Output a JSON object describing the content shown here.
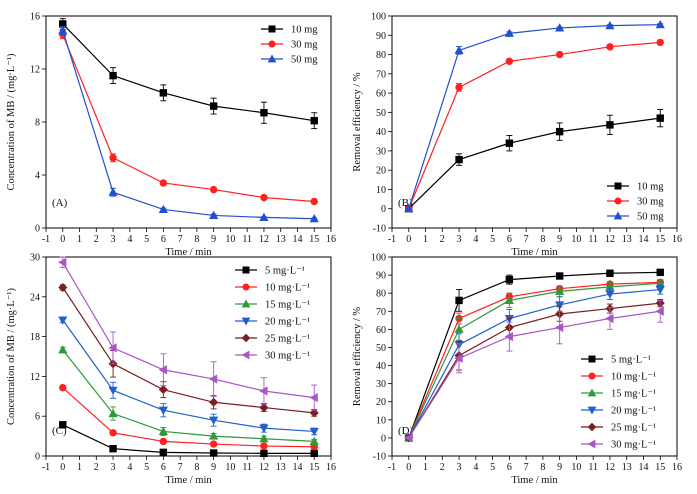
{
  "chart_data": [
    {
      "panel": "A",
      "panel_label": "(A)",
      "type": "line",
      "xlabel": "Time / min",
      "ylabel": "Concentration of MB / (mg·L⁻¹)",
      "xlim": [
        -1,
        16
      ],
      "ylim": [
        0,
        16
      ],
      "xticks": [
        -1,
        0,
        1,
        2,
        3,
        4,
        5,
        6,
        7,
        8,
        9,
        10,
        11,
        12,
        13,
        14,
        15,
        16
      ],
      "yticks": [
        0,
        4,
        8,
        12,
        16
      ],
      "x": [
        0,
        3,
        6,
        9,
        12,
        15
      ],
      "legend_position": "top-right",
      "series": [
        {
          "name": "10 mg",
          "color": "#000000",
          "marker": "square",
          "values": [
            15.4,
            11.5,
            10.2,
            9.2,
            8.7,
            8.1
          ],
          "errors": [
            0.4,
            0.6,
            0.6,
            0.6,
            0.8,
            0.6
          ]
        },
        {
          "name": "30 mg",
          "color": "#ff2020",
          "marker": "circle",
          "values": [
            14.6,
            5.3,
            3.4,
            2.9,
            2.3,
            2.0
          ],
          "errors": [
            0.3,
            0.3,
            0.15,
            0.1,
            0.1,
            0.1
          ]
        },
        {
          "name": "50 mg",
          "color": "#2050d0",
          "marker": "triangle-up",
          "values": [
            14.9,
            2.7,
            1.4,
            0.95,
            0.8,
            0.7
          ],
          "errors": [
            0.3,
            0.3,
            0.1,
            0.1,
            0.05,
            0.05
          ]
        }
      ]
    },
    {
      "panel": "B",
      "panel_label": "(B)",
      "type": "line",
      "xlabel": "Time / min",
      "ylabel": "Removal efficiency / %",
      "xlim": [
        -1,
        16
      ],
      "ylim": [
        -10,
        100
      ],
      "xticks": [
        -1,
        0,
        1,
        2,
        3,
        4,
        5,
        6,
        7,
        8,
        9,
        10,
        11,
        12,
        13,
        14,
        15,
        16
      ],
      "yticks": [
        -10,
        0,
        10,
        20,
        30,
        40,
        50,
        60,
        70,
        80,
        90,
        100
      ],
      "x": [
        0,
        3,
        6,
        9,
        12,
        15
      ],
      "legend_position": "bottom-right",
      "series": [
        {
          "name": "10 mg",
          "color": "#000000",
          "marker": "square",
          "values": [
            0,
            25.5,
            34,
            40,
            43.5,
            47
          ],
          "errors": [
            0,
            3,
            4,
            4.5,
            5,
            4.5
          ]
        },
        {
          "name": "30 mg",
          "color": "#ff2020",
          "marker": "circle",
          "values": [
            0,
            63,
            76.5,
            80,
            84,
            86.3
          ],
          "errors": [
            0,
            2,
            1,
            0.8,
            0.8,
            0.8
          ]
        },
        {
          "name": "50 mg",
          "color": "#2050d0",
          "marker": "triangle-up",
          "values": [
            0,
            82.2,
            91,
            93.8,
            95,
            95.5
          ],
          "errors": [
            0,
            2,
            0.8,
            0.5,
            0.5,
            0.5
          ]
        }
      ]
    },
    {
      "panel": "C",
      "panel_label": "(C)",
      "type": "line",
      "xlabel": "Time / min",
      "ylabel": "Concentration of MB / (mg·L⁻¹)",
      "xlim": [
        -1,
        16
      ],
      "ylim": [
        0,
        30
      ],
      "xticks": [
        -1,
        0,
        1,
        2,
        3,
        4,
        5,
        6,
        7,
        8,
        9,
        10,
        11,
        12,
        13,
        14,
        15,
        16
      ],
      "yticks": [
        0,
        6,
        12,
        18,
        24,
        30
      ],
      "x": [
        0,
        3,
        6,
        9,
        12,
        15
      ],
      "legend_position": "top-right",
      "series": [
        {
          "name": "5 mg·L⁻¹",
          "color": "#000000",
          "marker": "square",
          "values": [
            4.7,
            1.1,
            0.55,
            0.45,
            0.4,
            0.4
          ],
          "errors": [
            0.2,
            0.2,
            0.1,
            0.1,
            0.1,
            0.1
          ]
        },
        {
          "name": "10 mg·L⁻¹",
          "color": "#ff2020",
          "marker": "circle",
          "values": [
            10.3,
            3.5,
            2.2,
            1.8,
            1.5,
            1.4
          ],
          "errors": [
            0.3,
            0.3,
            0.2,
            0.2,
            0.2,
            0.2
          ]
        },
        {
          "name": "15 mg·L⁻¹",
          "color": "#2e9a3a",
          "marker": "triangle-up",
          "values": [
            16,
            6.4,
            3.7,
            3.0,
            2.6,
            2.2
          ],
          "errors": [
            0.4,
            1.0,
            0.6,
            0.4,
            0.4,
            0.3
          ]
        },
        {
          "name": "20 mg·L⁻¹",
          "color": "#1f5fcf",
          "marker": "triangle-down",
          "values": [
            20.5,
            9.9,
            6.9,
            5.4,
            4.2,
            3.7
          ],
          "errors": [
            0.4,
            1.2,
            1.0,
            0.9,
            0.6,
            0.5
          ]
        },
        {
          "name": "25 mg·L⁻¹",
          "color": "#7a1e1e",
          "marker": "diamond",
          "values": [
            25.4,
            13.9,
            10.0,
            8.1,
            7.3,
            6.5
          ],
          "errors": [
            0.4,
            2.0,
            1.2,
            1.0,
            0.6,
            0.5
          ]
        },
        {
          "name": "30 mg·L⁻¹",
          "color": "#a855c7",
          "marker": "triangle-left",
          "values": [
            29.2,
            16.3,
            13.0,
            11.6,
            9.8,
            8.8
          ],
          "errors": [
            0.8,
            2.4,
            2.4,
            2.6,
            2.0,
            1.9
          ]
        }
      ]
    },
    {
      "panel": "D",
      "panel_label": "(D)",
      "type": "line",
      "xlabel": "Time / min",
      "ylabel": "Removal efficiency / %",
      "xlim": [
        -1,
        16
      ],
      "ylim": [
        -10,
        100
      ],
      "xticks": [
        -1,
        0,
        1,
        2,
        3,
        4,
        5,
        6,
        7,
        8,
        9,
        10,
        11,
        12,
        13,
        14,
        15,
        16
      ],
      "yticks": [
        -10,
        0,
        10,
        20,
        30,
        40,
        50,
        60,
        70,
        80,
        90,
        100
      ],
      "x": [
        0,
        3,
        6,
        9,
        12,
        15
      ],
      "legend_position": "bottom-right",
      "series": [
        {
          "name": "5 mg·L⁻¹",
          "color": "#000000",
          "marker": "square",
          "values": [
            0,
            76,
            87.5,
            89.5,
            91,
            91.5
          ],
          "errors": [
            0,
            6,
            2.5,
            1.5,
            1,
            1
          ]
        },
        {
          "name": "10 mg·L⁻¹",
          "color": "#ff2020",
          "marker": "circle",
          "values": [
            0,
            66,
            78,
            82.5,
            85,
            86
          ],
          "errors": [
            0,
            3,
            2,
            1.5,
            1,
            1
          ]
        },
        {
          "name": "15 mg·L⁻¹",
          "color": "#2e9a3a",
          "marker": "triangle-up",
          "values": [
            0,
            60,
            76,
            81,
            83.5,
            85.5
          ],
          "errors": [
            0,
            6,
            4,
            3,
            2.5,
            2
          ]
        },
        {
          "name": "20 mg·L⁻¹",
          "color": "#1f5fcf",
          "marker": "triangle-down",
          "values": [
            0,
            51.5,
            66,
            73.5,
            79.5,
            82
          ],
          "errors": [
            0,
            6,
            5,
            4.5,
            3,
            2.5
          ]
        },
        {
          "name": "25 mg·L⁻¹",
          "color": "#7a1e1e",
          "marker": "diamond",
          "values": [
            0,
            45.5,
            61,
            68.5,
            71.5,
            74.5
          ],
          "errors": [
            0,
            8,
            5,
            4,
            2.5,
            2
          ]
        },
        {
          "name": "30 mg·L⁻¹",
          "color": "#a855c7",
          "marker": "triangle-left",
          "values": [
            0,
            44,
            56,
            61,
            66,
            70
          ],
          "errors": [
            0,
            8,
            8,
            9,
            6,
            6
          ]
        }
      ]
    }
  ]
}
